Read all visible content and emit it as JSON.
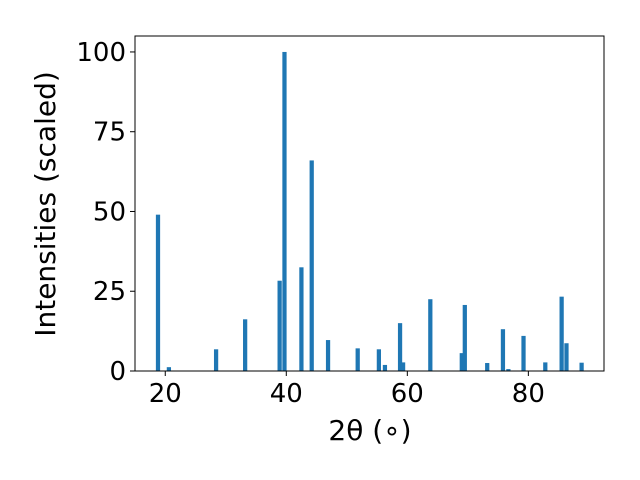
{
  "chart_data": {
    "type": "bar",
    "xlabel": "2θ (∘)",
    "ylabel": "Intensities (scaled)",
    "xlim": [
      15,
      92.5
    ],
    "ylim": [
      0,
      105
    ],
    "xticks": [
      20,
      40,
      60,
      80
    ],
    "yticks": [
      0,
      25,
      50,
      75,
      100
    ],
    "bar_width": 0.7,
    "bar_color": "#1f77b4",
    "x": [
      18.8,
      20.6,
      28.4,
      33.2,
      38.9,
      39.7,
      42.5,
      44.2,
      46.9,
      51.8,
      55.3,
      56.3,
      58.8,
      59.3,
      63.8,
      69.0,
      69.5,
      73.2,
      75.8,
      76.7,
      79.2,
      82.8,
      85.5,
      86.3,
      88.8
    ],
    "values": [
      49,
      1.2,
      6.8,
      16.2,
      28.3,
      100,
      32.5,
      66,
      9.7,
      7.1,
      6.8,
      1.9,
      15,
      2.7,
      22.5,
      5.6,
      20.7,
      2.5,
      13.1,
      0.6,
      11,
      2.7,
      23.3,
      8.7,
      2.6
    ]
  }
}
